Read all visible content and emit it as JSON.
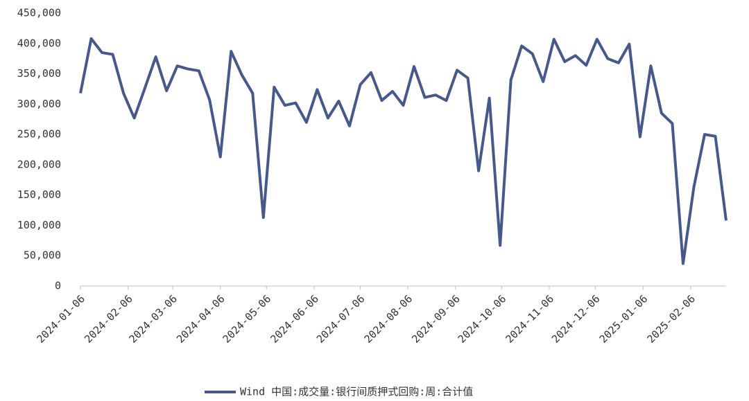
{
  "chart_data": {
    "type": "line",
    "x": [
      "2024-01-06",
      "2024-01-13",
      "2024-01-20",
      "2024-01-27",
      "2024-02-03",
      "2024-02-10",
      "2024-02-17",
      "2024-02-24",
      "2024-03-02",
      "2024-03-09",
      "2024-03-16",
      "2024-03-23",
      "2024-03-30",
      "2024-04-06",
      "2024-04-13",
      "2024-04-20",
      "2024-04-27",
      "2024-05-04",
      "2024-05-11",
      "2024-05-18",
      "2024-05-25",
      "2024-06-01",
      "2024-06-08",
      "2024-06-15",
      "2024-06-22",
      "2024-06-29",
      "2024-07-06",
      "2024-07-13",
      "2024-07-20",
      "2024-07-27",
      "2024-08-03",
      "2024-08-10",
      "2024-08-17",
      "2024-08-24",
      "2024-08-31",
      "2024-09-07",
      "2024-09-14",
      "2024-09-21",
      "2024-09-28",
      "2024-10-05",
      "2024-10-12",
      "2024-10-19",
      "2024-10-26",
      "2024-11-02",
      "2024-11-09",
      "2024-11-16",
      "2024-11-23",
      "2024-11-30",
      "2024-12-07",
      "2024-12-14",
      "2024-12-21",
      "2024-12-28",
      "2025-01-04",
      "2025-01-11",
      "2025-01-18",
      "2025-01-25",
      "2025-02-01",
      "2025-02-08",
      "2025-02-15",
      "2025-02-22",
      "2025-03-01"
    ],
    "series": [
      {
        "name": "Wind 中国:成交量:银行间质押式回购:周:合计值",
        "color": "#46598a",
        "values": [
          318000,
          408000,
          385000,
          382000,
          318000,
          277000,
          327000,
          378000,
          322000,
          363000,
          358000,
          355000,
          307000,
          213000,
          387000,
          348000,
          318000,
          113000,
          328000,
          298000,
          302000,
          270000,
          324000,
          277000,
          305000,
          264000,
          332000,
          352000,
          306000,
          321000,
          298000,
          362000,
          311000,
          315000,
          306000,
          356000,
          343000,
          190000,
          310000,
          67000,
          340000,
          396000,
          383000,
          337000,
          407000,
          370000,
          380000,
          364000,
          407000,
          375000,
          368000,
          399000,
          246000,
          363000,
          285000,
          268000,
          37000,
          163000,
          250000,
          247000,
          108000
        ]
      }
    ],
    "xlim": [
      "2024-01-06",
      "2025-03-01"
    ],
    "xticks": [
      "2024-01-06",
      "2024-02-06",
      "2024-03-06",
      "2024-04-06",
      "2024-05-06",
      "2024-06-06",
      "2024-07-06",
      "2024-08-06",
      "2024-09-06",
      "2024-10-06",
      "2024-11-06",
      "2024-12-06",
      "2025-01-06",
      "2025-02-06"
    ],
    "ylim": [
      0,
      450000
    ],
    "yticks": [
      0,
      {
        "value": 50000,
        "label": "50,000"
      },
      {
        "value": 100000,
        "label": "100,000"
      },
      {
        "value": 150000,
        "label": "150,000"
      },
      {
        "value": 200000,
        "label": "200,000"
      },
      {
        "value": 250000,
        "label": "250,000"
      },
      {
        "value": 300000,
        "label": "300,000"
      },
      {
        "value": 350000,
        "label": "350,000"
      },
      {
        "value": 400000,
        "label": "400,000"
      },
      {
        "value": 450000,
        "label": "450,000"
      }
    ],
    "grid": false
  }
}
